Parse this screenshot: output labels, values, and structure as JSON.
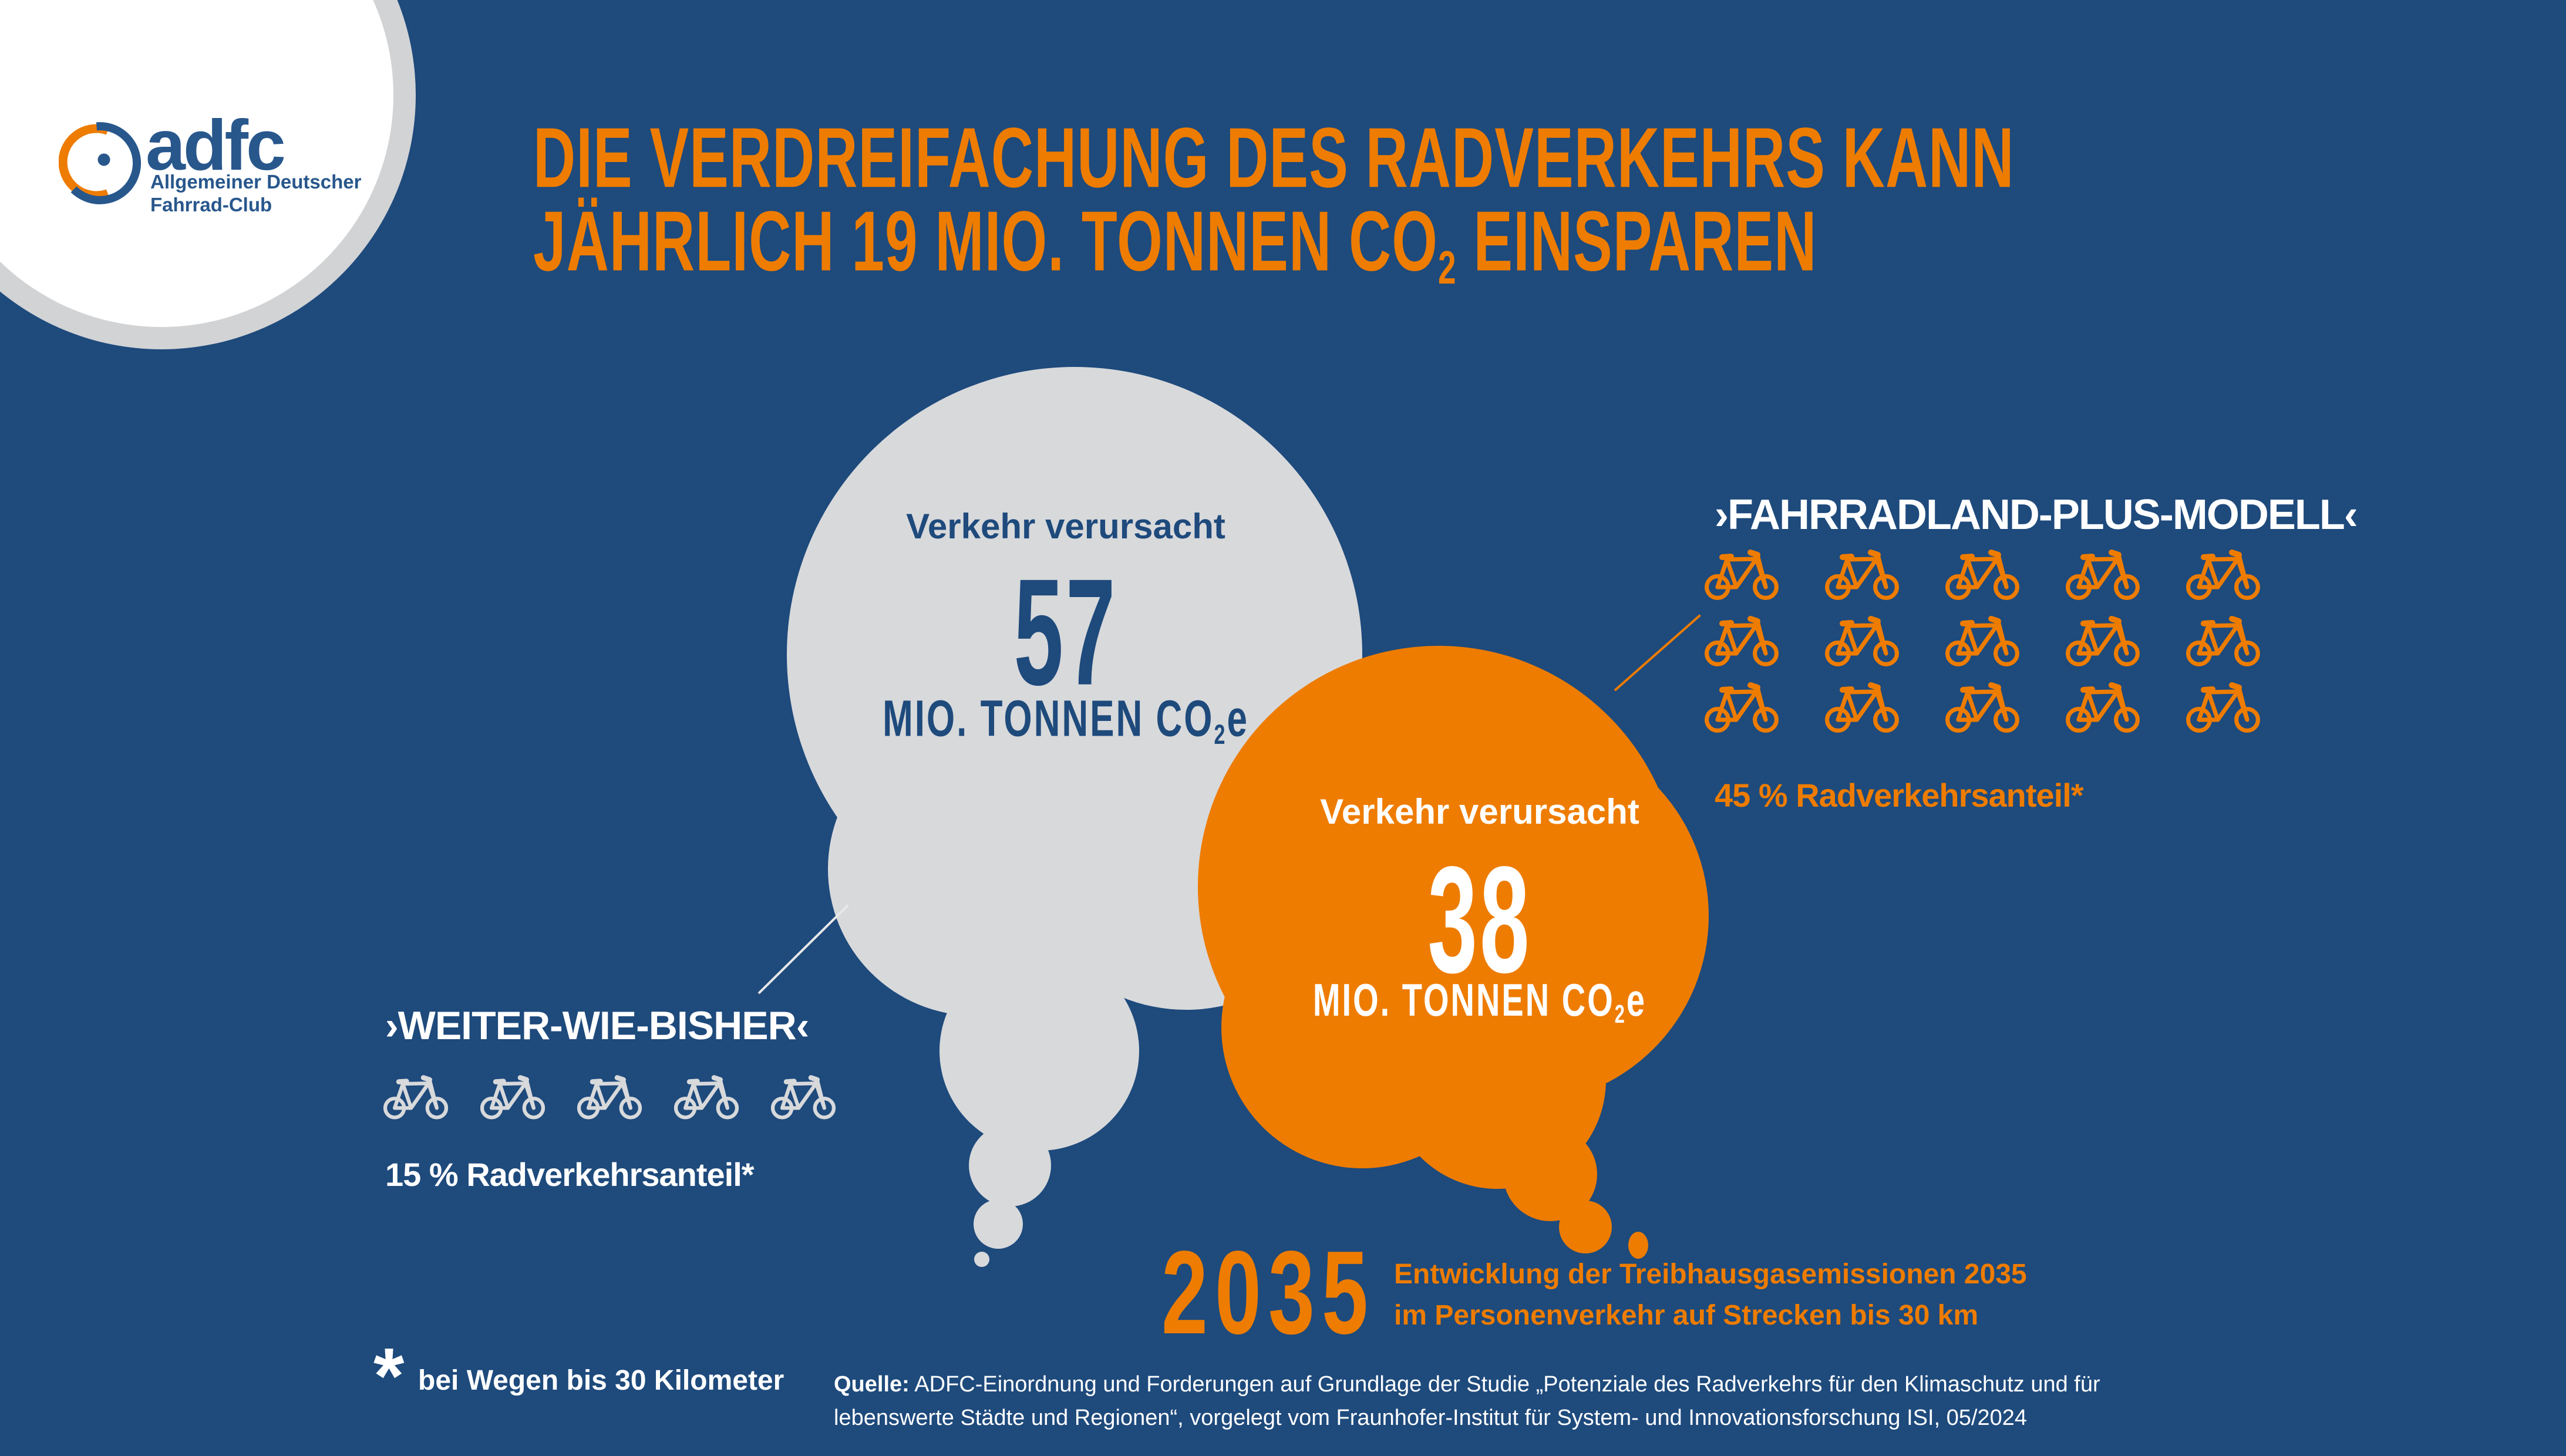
{
  "colors": {
    "background": "#1E4A7C",
    "orange": "#EE7C00",
    "cloud_gray": "#D8D9DB",
    "white": "#FFFFFF",
    "logo_blue": "#28578C",
    "text_blue": "#1E4A7C"
  },
  "logo": {
    "brand": "adfc",
    "subtitle_line1": "Allgemeiner Deutscher",
    "subtitle_line2": "Fahrrad-Club"
  },
  "title": {
    "line1": "DIE VERDREIFACHUNG DES RADVERKEHRS KANN",
    "line2_before_sub": "JÄHRLICH 19 MIO. TONNEN CO",
    "line2_sub": "2",
    "line2_after_sub": " EINSPAREN"
  },
  "clouds": {
    "gray": {
      "label": "Verkehr verursacht",
      "value": "57",
      "unit_before_sub": "MIO. TONNEN CO",
      "unit_sub": "2",
      "unit_after_sub": "e"
    },
    "orange": {
      "label": "Verkehr verursacht",
      "value": "38",
      "unit_before_sub": "MIO. TONNEN CO",
      "unit_sub": "2",
      "unit_after_sub": "e"
    }
  },
  "scenarios": {
    "left": {
      "title": "›WEITER-WIE-BISHER‹",
      "share_label": "15 % Radverkehrsanteil*",
      "bike_count": 5
    },
    "right": {
      "title": "›FAHRRADLAND-PLUS-MODELL‹",
      "share_label": "45 % Radverkehrsanteil*",
      "bike_count": 15
    }
  },
  "year_block": {
    "year": "2035",
    "desc_line1": "Entwicklung der Treibhausgasemissionen 2035",
    "desc_line2": "im Personenverkehr auf Strecken bis 30 km"
  },
  "footnote": {
    "symbol": "*",
    "text": "bei Wegen bis 30 Kilometer"
  },
  "source": {
    "label": "Quelle:",
    "text_line1": "ADFC-Einordnung und Forderungen auf Grundlage der Studie „Potenziale des Radverkehrs für den Klimaschutz und für",
    "text_line2": "lebenswerte Städte und Regionen“, vorgelegt vom Fraunhofer-Institut für System- und Innovationsforschung ISI, 05/2024"
  },
  "chart_data": {
    "type": "pictogram",
    "title": "Die Verdreifachung des Radverkehrs kann jährlich 19 Mio. Tonnen CO2 einsparen",
    "year": 2035,
    "unit": "Mio. Tonnen CO2e",
    "categories": [
      "›WEITER-WIE-BISHER‹",
      "›FAHRRADLAND-PLUS-MODELL‹"
    ],
    "values": [
      57,
      38
    ],
    "cycling_share_percent": [
      15,
      45
    ],
    "bike_icon_counts": [
      5,
      15
    ],
    "savings_mio_tonnen_co2": 19
  }
}
